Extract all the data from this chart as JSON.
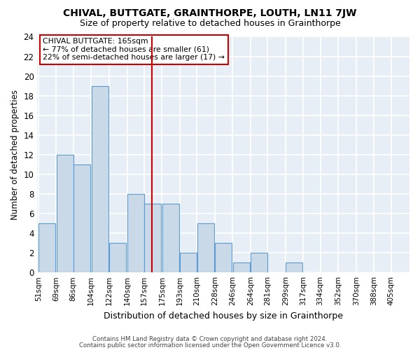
{
  "title": "CHIVAL, BUTTGATE, GRAINTHORPE, LOUTH, LN11 7JW",
  "subtitle": "Size of property relative to detached houses in Grainthorpe",
  "xlabel": "Distribution of detached houses by size in Grainthorpe",
  "ylabel": "Number of detached properties",
  "bin_labels": [
    "51sqm",
    "69sqm",
    "86sqm",
    "104sqm",
    "122sqm",
    "140sqm",
    "157sqm",
    "175sqm",
    "193sqm",
    "210sqm",
    "228sqm",
    "246sqm",
    "264sqm",
    "281sqm",
    "299sqm",
    "317sqm",
    "334sqm",
    "352sqm",
    "370sqm",
    "388sqm",
    "405sqm"
  ],
  "bin_edges": [
    51,
    69,
    86,
    104,
    122,
    140,
    157,
    175,
    193,
    210,
    228,
    246,
    264,
    281,
    299,
    317,
    334,
    352,
    370,
    388,
    405
  ],
  "values": [
    5,
    12,
    11,
    19,
    3,
    8,
    7,
    7,
    2,
    5,
    3,
    1,
    2,
    0,
    1,
    0,
    0,
    0,
    0,
    0,
    0
  ],
  "bar_color": "#c9d9e8",
  "bar_edge_color": "#5b9bd5",
  "bar_edge_width": 0.8,
  "red_line_x": 165,
  "annotation_text": "CHIVAL BUTTGATE: 165sqm\n← 77% of detached houses are smaller (61)\n22% of semi-detached houses are larger (17) →",
  "annotation_box_color": "#ffffff",
  "annotation_box_edge_color": "#cc0000",
  "ylim": [
    0,
    24
  ],
  "yticks": [
    0,
    2,
    4,
    6,
    8,
    10,
    12,
    14,
    16,
    18,
    20,
    22,
    24
  ],
  "background_color": "#e8eef5",
  "grid_color": "#ffffff",
  "footer_line1": "Contains HM Land Registry data © Crown copyright and database right 2024.",
  "footer_line2": "Contains public sector information licensed under the Open Government Licence v3.0."
}
